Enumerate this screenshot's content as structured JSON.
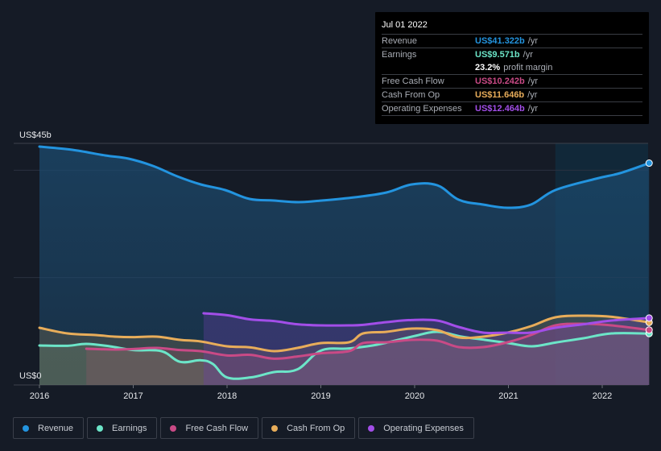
{
  "tooltip": {
    "date": "Jul 01 2022",
    "rows": [
      {
        "label": "Revenue",
        "value": "US$41.322b",
        "unit": "/yr",
        "color": "#2394df"
      },
      {
        "label": "Earnings",
        "value": "US$9.571b",
        "unit": "/yr",
        "color": "#6ce5c8"
      },
      {
        "label": "",
        "value": "23.2%",
        "unit": "profit margin",
        "color": "#ffffff"
      },
      {
        "label": "Free Cash Flow",
        "value": "US$10.242b",
        "unit": "/yr",
        "color": "#c94a86"
      },
      {
        "label": "Cash From Op",
        "value": "US$11.646b",
        "unit": "/yr",
        "color": "#e8ad5a"
      },
      {
        "label": "Operating Expenses",
        "value": "US$12.464b",
        "unit": "/yr",
        "color": "#a24ee8"
      }
    ]
  },
  "legend": [
    {
      "label": "Revenue",
      "color": "#2394df"
    },
    {
      "label": "Earnings",
      "color": "#6ce5c8"
    },
    {
      "label": "Free Cash Flow",
      "color": "#c94a86"
    },
    {
      "label": "Cash From Op",
      "color": "#e8ad5a"
    },
    {
      "label": "Operating Expenses",
      "color": "#a24ee8"
    }
  ],
  "chart_data": {
    "type": "area",
    "title": "",
    "xlabel": "",
    "ylabel": "",
    "y_unit": "US$ billions",
    "ylim": [
      0,
      45
    ],
    "xlim": [
      2016.0,
      2022.5
    ],
    "y_tick_labels": [
      {
        "value": 45,
        "label": "US$45b"
      },
      {
        "value": 0,
        "label": "US$0"
      }
    ],
    "y_gridlines": [
      0,
      20,
      40,
      45
    ],
    "x_ticks": [
      2016,
      2017,
      2018,
      2019,
      2020,
      2021,
      2022
    ],
    "x_tick_labels": [
      "2016",
      "2017",
      "2018",
      "2019",
      "2020",
      "2021",
      "2022"
    ],
    "highlight_start": 2021.5,
    "legend_position": "bottom-left",
    "series": [
      {
        "name": "Revenue",
        "color": "#2394df",
        "x": [
          2016.0,
          2016.35,
          2016.7,
          2016.95,
          2017.21,
          2017.47,
          2017.72,
          2017.98,
          2018.24,
          2018.5,
          2018.76,
          2019.01,
          2019.36,
          2019.7,
          2019.97,
          2020.24,
          2020.47,
          2020.73,
          2020.99,
          2021.24,
          2021.5,
          2021.93,
          2022.19,
          2022.5
        ],
        "values": [
          44.4,
          43.8,
          42.75,
          42.15,
          40.8,
          38.85,
          37.35,
          36.3,
          34.65,
          34.35,
          34.05,
          34.35,
          34.95,
          35.85,
          37.35,
          37.2,
          34.5,
          33.6,
          33.0,
          33.6,
          36.3,
          38.4,
          39.45,
          41.322
        ]
      },
      {
        "name": "Earnings",
        "color": "#6ce5c8",
        "x": [
          2016.0,
          2016.3,
          2016.5,
          2016.75,
          2017.0,
          2017.3,
          2017.5,
          2017.72,
          2017.85,
          2018.0,
          2018.25,
          2018.5,
          2018.75,
          2019.0,
          2019.3,
          2019.6,
          2019.97,
          2020.24,
          2020.5,
          2020.75,
          2021.0,
          2021.25,
          2021.5,
          2021.8,
          2022.1,
          2022.5
        ],
        "values": [
          7.35,
          7.3,
          7.65,
          7.2,
          6.5,
          6.3,
          4.3,
          4.6,
          3.9,
          1.4,
          1.4,
          2.4,
          2.9,
          6.4,
          6.8,
          7.5,
          9.0,
          9.9,
          9.0,
          8.4,
          7.8,
          7.2,
          7.9,
          8.7,
          9.6,
          9.571
        ]
      },
      {
        "name": "Free Cash Flow",
        "color": "#c94a86",
        "x": [
          2016.5,
          2016.8,
          2017.0,
          2017.25,
          2017.5,
          2017.72,
          2018.0,
          2018.25,
          2018.5,
          2018.75,
          2019.0,
          2019.3,
          2019.45,
          2019.7,
          2019.97,
          2020.24,
          2020.47,
          2020.73,
          2020.99,
          2021.24,
          2021.5,
          2021.8,
          2022.1,
          2022.5
        ],
        "values": [
          6.75,
          6.6,
          6.7,
          6.9,
          6.5,
          6.3,
          5.5,
          5.6,
          4.9,
          5.3,
          5.9,
          6.3,
          7.8,
          7.95,
          8.4,
          8.25,
          7.05,
          7.05,
          7.95,
          9.3,
          11.1,
          11.4,
          11.1,
          10.242
        ]
      },
      {
        "name": "Cash From Op",
        "color": "#e8ad5a",
        "x": [
          2016.0,
          2016.3,
          2016.6,
          2016.8,
          2017.0,
          2017.25,
          2017.5,
          2017.72,
          2018.0,
          2018.25,
          2018.5,
          2018.75,
          2019.0,
          2019.3,
          2019.45,
          2019.7,
          2019.97,
          2020.24,
          2020.47,
          2020.73,
          2020.99,
          2021.24,
          2021.5,
          2021.8,
          2022.1,
          2022.5
        ],
        "values": [
          10.65,
          9.6,
          9.3,
          9.0,
          8.9,
          9.0,
          8.4,
          8.1,
          7.2,
          7.0,
          6.3,
          6.9,
          7.8,
          7.95,
          9.6,
          9.9,
          10.5,
          10.2,
          8.85,
          9.0,
          9.75,
          10.95,
          12.6,
          12.9,
          12.7,
          11.646
        ]
      },
      {
        "name": "Operating Expenses",
        "color": "#a24ee8",
        "x": [
          2017.75,
          2018.0,
          2018.25,
          2018.5,
          2018.75,
          2019.0,
          2019.3,
          2019.45,
          2019.7,
          2019.97,
          2020.24,
          2020.47,
          2020.73,
          2020.99,
          2021.24,
          2021.5,
          2021.8,
          2022.1,
          2022.5
        ],
        "values": [
          13.35,
          13.0,
          12.2,
          11.9,
          11.3,
          11.1,
          11.1,
          11.2,
          11.7,
          12.1,
          12.0,
          10.8,
          9.75,
          9.75,
          9.75,
          10.65,
          11.3,
          12.0,
          12.464
        ]
      }
    ]
  }
}
